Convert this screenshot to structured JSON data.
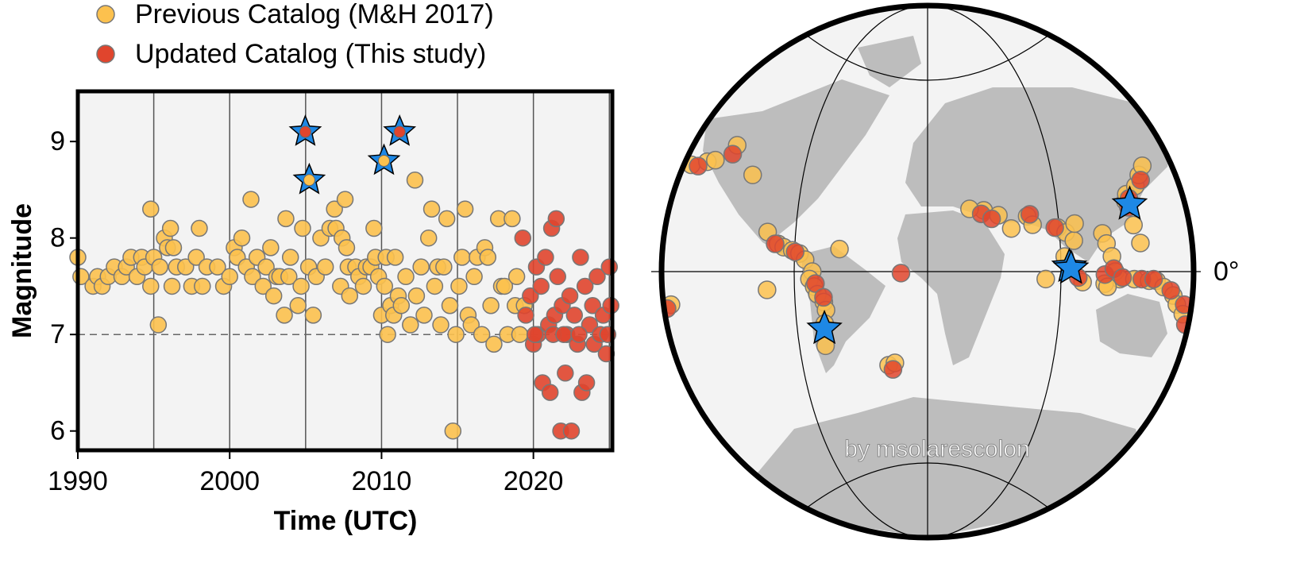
{
  "chart_data": [
    {
      "type": "scatter",
      "xlabel": "Time (UTC)",
      "ylabel": "Magnitude",
      "xlim": [
        1990,
        2025.3
      ],
      "ylim": [
        5.8,
        9.52
      ],
      "xticks": [
        1990,
        2000,
        2010,
        2020
      ],
      "yticks": [
        6,
        7,
        8,
        9
      ],
      "xgrid": [
        1995,
        2000,
        2005,
        2010,
        2015,
        2020,
        2025
      ],
      "hline": 7,
      "series": [
        {
          "name": "Previous Catalog (M&H 2017)",
          "color": "#fcc14e",
          "x": [
            1990.0,
            1990.2,
            1991.0,
            1991.3,
            1991.6,
            1992.0,
            1992.4,
            1992.9,
            1993.2,
            1993.5,
            1993.9,
            1994.2,
            1994.4,
            1994.8,
            1995.0,
            1995.3,
            1994.8,
            1995.4,
            1995.7,
            1995.9,
            1996.1,
            1996.2,
            1996.3,
            1996.5,
            1997.1,
            1997.5,
            1997.8,
            1998.0,
            1998.2,
            1998.5,
            1999.2,
            1999.6,
            2000.0,
            2000.3,
            2000.5,
            2000.8,
            2001.1,
            2001.4,
            2001.5,
            2001.8,
            2002.2,
            2002.4,
            2002.7,
            2002.9,
            2003.1,
            2003.3,
            2003.6,
            2003.7,
            2003.9,
            2004.0,
            2004.5,
            2004.7,
            2004.8,
            2005.2,
            2005.5,
            2005.7,
            2006.0,
            2006.3,
            2006.6,
            2006.9,
            2007.0,
            2007.3,
            2007.4,
            2007.6,
            2007.7,
            2007.8,
            2007.9,
            2008.3,
            2008.5,
            2008.8,
            2009.0,
            2009.3,
            2009.5,
            2009.6,
            2009.8,
            2010.0,
            2010.2,
            2010.3,
            2010.4,
            2010.6,
            2010.8,
            2010.9,
            2011.1,
            2011.3,
            2011.6,
            2011.9,
            2012.2,
            2012.3,
            2012.6,
            2012.8,
            2013.1,
            2013.3,
            2013.5,
            2013.7,
            2013.9,
            2014.1,
            2014.3,
            2014.5,
            2014.7,
            2014.9,
            2015.1,
            2015.3,
            2015.5,
            2015.7,
            2015.9,
            2016.1,
            2016.3,
            2016.6,
            2016.8,
            2017.0,
            2017.2,
            2017.4,
            2017.7,
            2017.9,
            2018.1,
            2018.3,
            2018.6,
            2018.8,
            2018.9,
            2019.1,
            2019.4
          ],
          "values": [
            7.8,
            7.6,
            7.5,
            7.6,
            7.5,
            7.6,
            7.7,
            7.6,
            7.7,
            7.8,
            7.6,
            7.8,
            7.7,
            7.5,
            7.8,
            7.1,
            8.3,
            7.7,
            8.0,
            7.9,
            8.1,
            7.5,
            7.9,
            7.7,
            7.7,
            7.5,
            7.8,
            8.1,
            7.5,
            7.7,
            7.7,
            7.5,
            7.6,
            7.9,
            7.8,
            8.0,
            7.7,
            8.4,
            7.6,
            7.8,
            7.5,
            7.7,
            7.9,
            7.4,
            7.6,
            7.6,
            7.2,
            8.2,
            7.6,
            7.8,
            7.3,
            7.5,
            8.1,
            7.7,
            7.2,
            7.6,
            8.0,
            7.7,
            8.1,
            8.3,
            8.1,
            7.5,
            8.0,
            8.4,
            7.9,
            7.7,
            7.4,
            7.7,
            7.6,
            7.5,
            7.7,
            7.7,
            8.1,
            7.8,
            7.6,
            7.2,
            7.5,
            7.8,
            7.0,
            7.3,
            7.2,
            7.8,
            7.4,
            7.3,
            7.6,
            7.1,
            8.6,
            7.4,
            7.7,
            7.2,
            8.0,
            8.3,
            7.5,
            7.7,
            7.1,
            7.7,
            8.2,
            7.3,
            6.0,
            7.0,
            7.5,
            7.8,
            8.3,
            7.2,
            7.1,
            7.6,
            7.8,
            7.0,
            7.9,
            7.8,
            7.3,
            6.9,
            8.2,
            7.5,
            7.5,
            7.0,
            8.2,
            7.3,
            7.6,
            7.0,
            7.3
          ]
        },
        {
          "name": "Updated Catalog (This study)",
          "color": "#e0452d",
          "x": [
            2019.3,
            2019.5,
            2019.8,
            2020.0,
            2020.2,
            2020.3,
            2020.5,
            2020.6,
            2020.8,
            2021.0,
            2021.1,
            2021.2,
            2021.4,
            2021.5,
            2021.6,
            2021.8,
            2021.9,
            2022.1,
            2022.2,
            2022.4,
            2022.5,
            2022.7,
            2022.9,
            2023.1,
            2023.2,
            2023.4,
            2023.5,
            2023.7,
            2023.9,
            2024.0,
            2024.2,
            2024.4,
            2024.6,
            2024.8,
            2025.0,
            2025.1,
            2020.1,
            2021.3,
            2022.0,
            2023.0,
            2024.9
          ],
          "values": [
            8.0,
            7.2,
            7.4,
            6.9,
            7.7,
            7.0,
            7.5,
            6.5,
            7.8,
            7.1,
            6.4,
            8.1,
            7.2,
            8.2,
            7.6,
            6.0,
            7.3,
            6.6,
            7.0,
            7.4,
            6.0,
            7.2,
            6.9,
            7.8,
            6.4,
            7.5,
            6.5,
            7.1,
            7.3,
            6.9,
            7.6,
            7.0,
            7.2,
            6.8,
            7.7,
            7.3,
            7.0,
            7.0,
            7.0,
            7.0,
            7.0
          ]
        },
        {
          "color": "#1e88e5",
          "x": [
            2004.98,
            2005.24,
            2010.16,
            2011.19
          ],
          "values": [
            9.1,
            8.6,
            8.8,
            9.1
          ],
          "marker_colors": [
            "#e0452d",
            "#fcc14e",
            "#fcc14e",
            "#e0452d"
          ]
        }
      ]
    },
    {
      "type": "map",
      "projection": "van-der-grinten",
      "label": "0°",
      "watermark": "by msolarescolon",
      "series": [
        {
          "color": "#fcc14e",
          "lon": [
            -175,
            -165,
            -150,
            -160,
            -130,
            -110,
            -102,
            -98,
            -92,
            -87,
            -83,
            -78,
            -80,
            -77,
            -75,
            -71,
            -70,
            -72,
            -74,
            -30,
            -25,
            -109,
            -60,
            40,
            30,
            50,
            58,
            70,
            73,
            90,
            95,
            100,
            102,
            120,
            122,
            125,
            127,
            130,
            140,
            150,
            155,
            160,
            167,
            170,
            175,
            140,
            142,
            150,
            155,
            160,
            145,
            142,
            105,
            120,
            122,
            93,
            80,
            -175
          ],
          "lat": [
            52,
            54,
            61,
            55,
            52,
            25,
            18,
            16,
            14,
            12,
            8,
            0,
            -5,
            -10,
            -15,
            -20,
            -25,
            -33,
            -45,
            -56,
            -55,
            -12,
            15,
            39,
            40,
            36,
            28,
            35,
            30,
            28,
            25,
            20,
            30,
            24,
            18,
            10,
            0,
            -5,
            -5,
            -6,
            -6,
            -10,
            -15,
            -20,
            -25,
            40,
            43,
            46,
            50,
            53,
            18,
            28,
            -7,
            -8,
            -10,
            10,
            -5,
            -20
          ]
        },
        {
          "color": "#e0452d",
          "lon": [
            -76,
            -71,
            -90,
            -104,
            -150,
            -170,
            -18,
            -27,
            120,
            126,
            132,
            145,
            153,
            165,
            175,
            178,
            141,
            143,
            155,
            102,
            96,
            38,
            45,
            72,
            88,
            -178
          ],
          "lat": [
            -8,
            -17,
            13,
            18,
            58,
            52,
            -1,
            -58,
            -2,
            2,
            -4,
            -5,
            -5,
            -12,
            -20,
            -30,
            37,
            41,
            48,
            -4,
            3,
            37,
            34,
            36,
            28,
            -22
          ]
        },
        {
          "color": "#1e88e5",
          "lon": [
            95.9,
            97.1,
            -72.7,
            142.4
          ],
          "lat": [
            3.3,
            2.1,
            -35.9,
            38.3
          ]
        }
      ]
    }
  ]
}
